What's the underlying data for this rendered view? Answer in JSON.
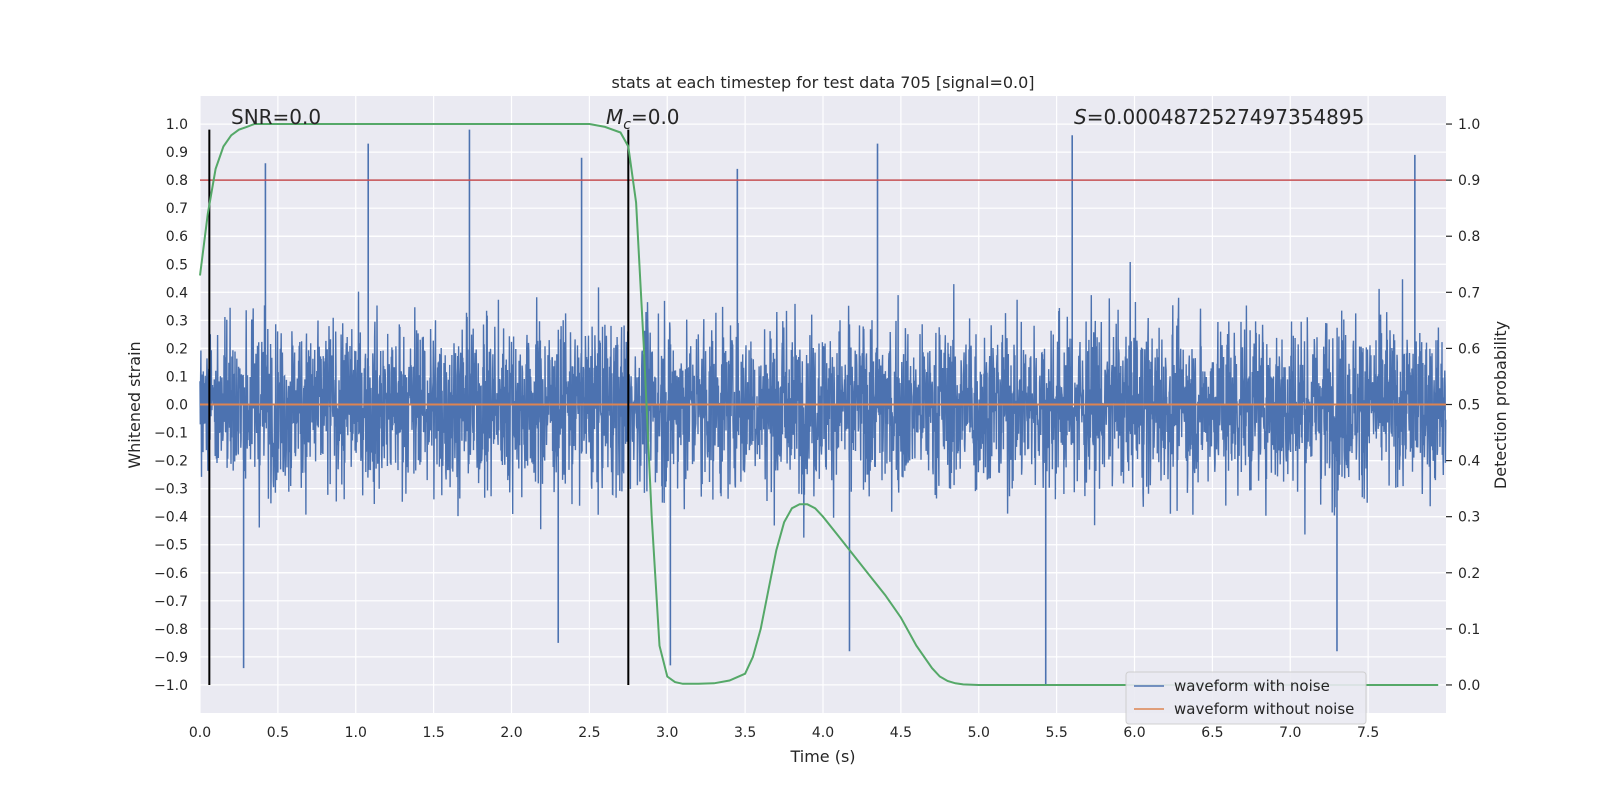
{
  "chart_data": {
    "type": "line",
    "title": "stats at each timestep for test data 705 [signal=0.0]",
    "xlabel": "Time (s)",
    "ylabel_left": "Whitened strain",
    "ylabel_right": "Detection probability",
    "xlim": [
      0,
      8
    ],
    "ylim_left": [
      -1.1,
      1.1
    ],
    "ylim_right": [
      -0.05,
      1.05
    ],
    "x_ticks": [
      0.0,
      0.5,
      1.0,
      1.5,
      2.0,
      2.5,
      3.0,
      3.5,
      4.0,
      4.5,
      5.0,
      5.5,
      6.0,
      6.5,
      7.0,
      7.5
    ],
    "x_tick_labels": [
      "0.0",
      "0.5",
      "1.0",
      "1.5",
      "2.0",
      "2.5",
      "3.0",
      "3.5",
      "4.0",
      "4.5",
      "5.0",
      "5.5",
      "6.0",
      "6.5",
      "7.0",
      "7.5"
    ],
    "y_left_ticks": [
      -1.0,
      -0.9,
      -0.8,
      -0.7,
      -0.6,
      -0.5,
      -0.4,
      -0.3,
      -0.2,
      -0.1,
      0.0,
      0.1,
      0.2,
      0.3,
      0.4,
      0.5,
      0.6,
      0.7,
      0.8,
      0.9,
      1.0
    ],
    "y_left_tick_labels": [
      "−1.0",
      "−0.9",
      "−0.8",
      "−0.7",
      "−0.6",
      "−0.5",
      "−0.4",
      "−0.3",
      "−0.2",
      "−0.1",
      "0.0",
      "0.1",
      "0.2",
      "0.3",
      "0.4",
      "0.5",
      "0.6",
      "0.7",
      "0.8",
      "0.9",
      "1.0"
    ],
    "y_right_ticks": [
      0.0,
      0.1,
      0.2,
      0.3,
      0.4,
      0.5,
      0.6,
      0.7,
      0.8,
      0.9,
      1.0
    ],
    "y_right_tick_labels": [
      "0.0",
      "0.1",
      "0.2",
      "0.3",
      "0.4",
      "0.5",
      "0.6",
      "0.7",
      "0.8",
      "0.9",
      "1.0"
    ],
    "annotations": {
      "snr": "SNR=0.0",
      "mc_symbol": "M",
      "mc_sub": "c",
      "mc_value": "=0.0",
      "s_symbol": "S",
      "s_value": "=0.0004872527497354895"
    },
    "series": [
      {
        "name": "waveform with noise",
        "color": "#4c72b0",
        "axis": "left",
        "description_range": [
          -1.0,
          0.98
        ],
        "peaks": [
          {
            "x": 0.42,
            "y": 0.86
          },
          {
            "x": 1.08,
            "y": 0.93
          },
          {
            "x": 1.73,
            "y": 0.98
          },
          {
            "x": 2.45,
            "y": 0.88
          },
          {
            "x": 3.45,
            "y": 0.84
          },
          {
            "x": 4.35,
            "y": 0.93
          },
          {
            "x": 5.6,
            "y": 0.96
          },
          {
            "x": 7.8,
            "y": 0.89
          }
        ],
        "troughs": [
          {
            "x": 0.28,
            "y": -0.94
          },
          {
            "x": 2.3,
            "y": -0.85
          },
          {
            "x": 3.02,
            "y": -0.93
          },
          {
            "x": 5.43,
            "y": -1.0
          },
          {
            "x": 4.17,
            "y": -0.88
          },
          {
            "x": 7.3,
            "y": -0.88
          }
        ]
      },
      {
        "name": "waveform without noise",
        "color": "#dd8452",
        "axis": "left",
        "values_constant": 0.0
      },
      {
        "name": "detection probability",
        "color": "#55a868",
        "axis": "right",
        "x": [
          0.0,
          0.05,
          0.1,
          0.15,
          0.2,
          0.25,
          0.3,
          0.35,
          0.5,
          1.0,
          1.5,
          2.0,
          2.5,
          2.6,
          2.7,
          2.75,
          2.8,
          2.85,
          2.9,
          2.95,
          3.0,
          3.05,
          3.1,
          3.2,
          3.3,
          3.4,
          3.5,
          3.55,
          3.6,
          3.65,
          3.7,
          3.75,
          3.8,
          3.85,
          3.9,
          3.95,
          4.0,
          4.1,
          4.2,
          4.3,
          4.4,
          4.5,
          4.6,
          4.7,
          4.75,
          4.8,
          4.85,
          4.9,
          5.0,
          5.5,
          6.0,
          6.5,
          7.0,
          7.5,
          7.95
        ],
        "values": [
          0.73,
          0.84,
          0.92,
          0.96,
          0.98,
          0.99,
          0.995,
          1.0,
          1.0,
          1.0,
          1.0,
          1.0,
          1.0,
          0.995,
          0.985,
          0.96,
          0.86,
          0.6,
          0.3,
          0.07,
          0.015,
          0.005,
          0.002,
          0.002,
          0.003,
          0.008,
          0.02,
          0.05,
          0.1,
          0.17,
          0.24,
          0.29,
          0.315,
          0.322,
          0.322,
          0.315,
          0.3,
          0.265,
          0.23,
          0.195,
          0.16,
          0.12,
          0.07,
          0.03,
          0.015,
          0.007,
          0.003,
          0.001,
          0.0,
          0.0,
          0.0,
          0.0,
          0.0,
          0.0,
          0.0
        ]
      }
    ],
    "threshold": {
      "axis": "right",
      "value": 0.9,
      "color": "#c44e52"
    },
    "vlines": [
      {
        "x": 0.06,
        "ymin": -1.0,
        "ymax": 0.98,
        "color": "#000000"
      },
      {
        "x": 2.75,
        "ymin": -1.0,
        "ymax": 0.98,
        "color": "#000000"
      }
    ],
    "legend": {
      "placement": "lower-right",
      "entries": [
        {
          "label": "waveform with noise",
          "color": "#4c72b0"
        },
        {
          "label": "waveform without noise",
          "color": "#dd8452"
        }
      ]
    },
    "grid": true,
    "background": "#eaeaf2"
  }
}
